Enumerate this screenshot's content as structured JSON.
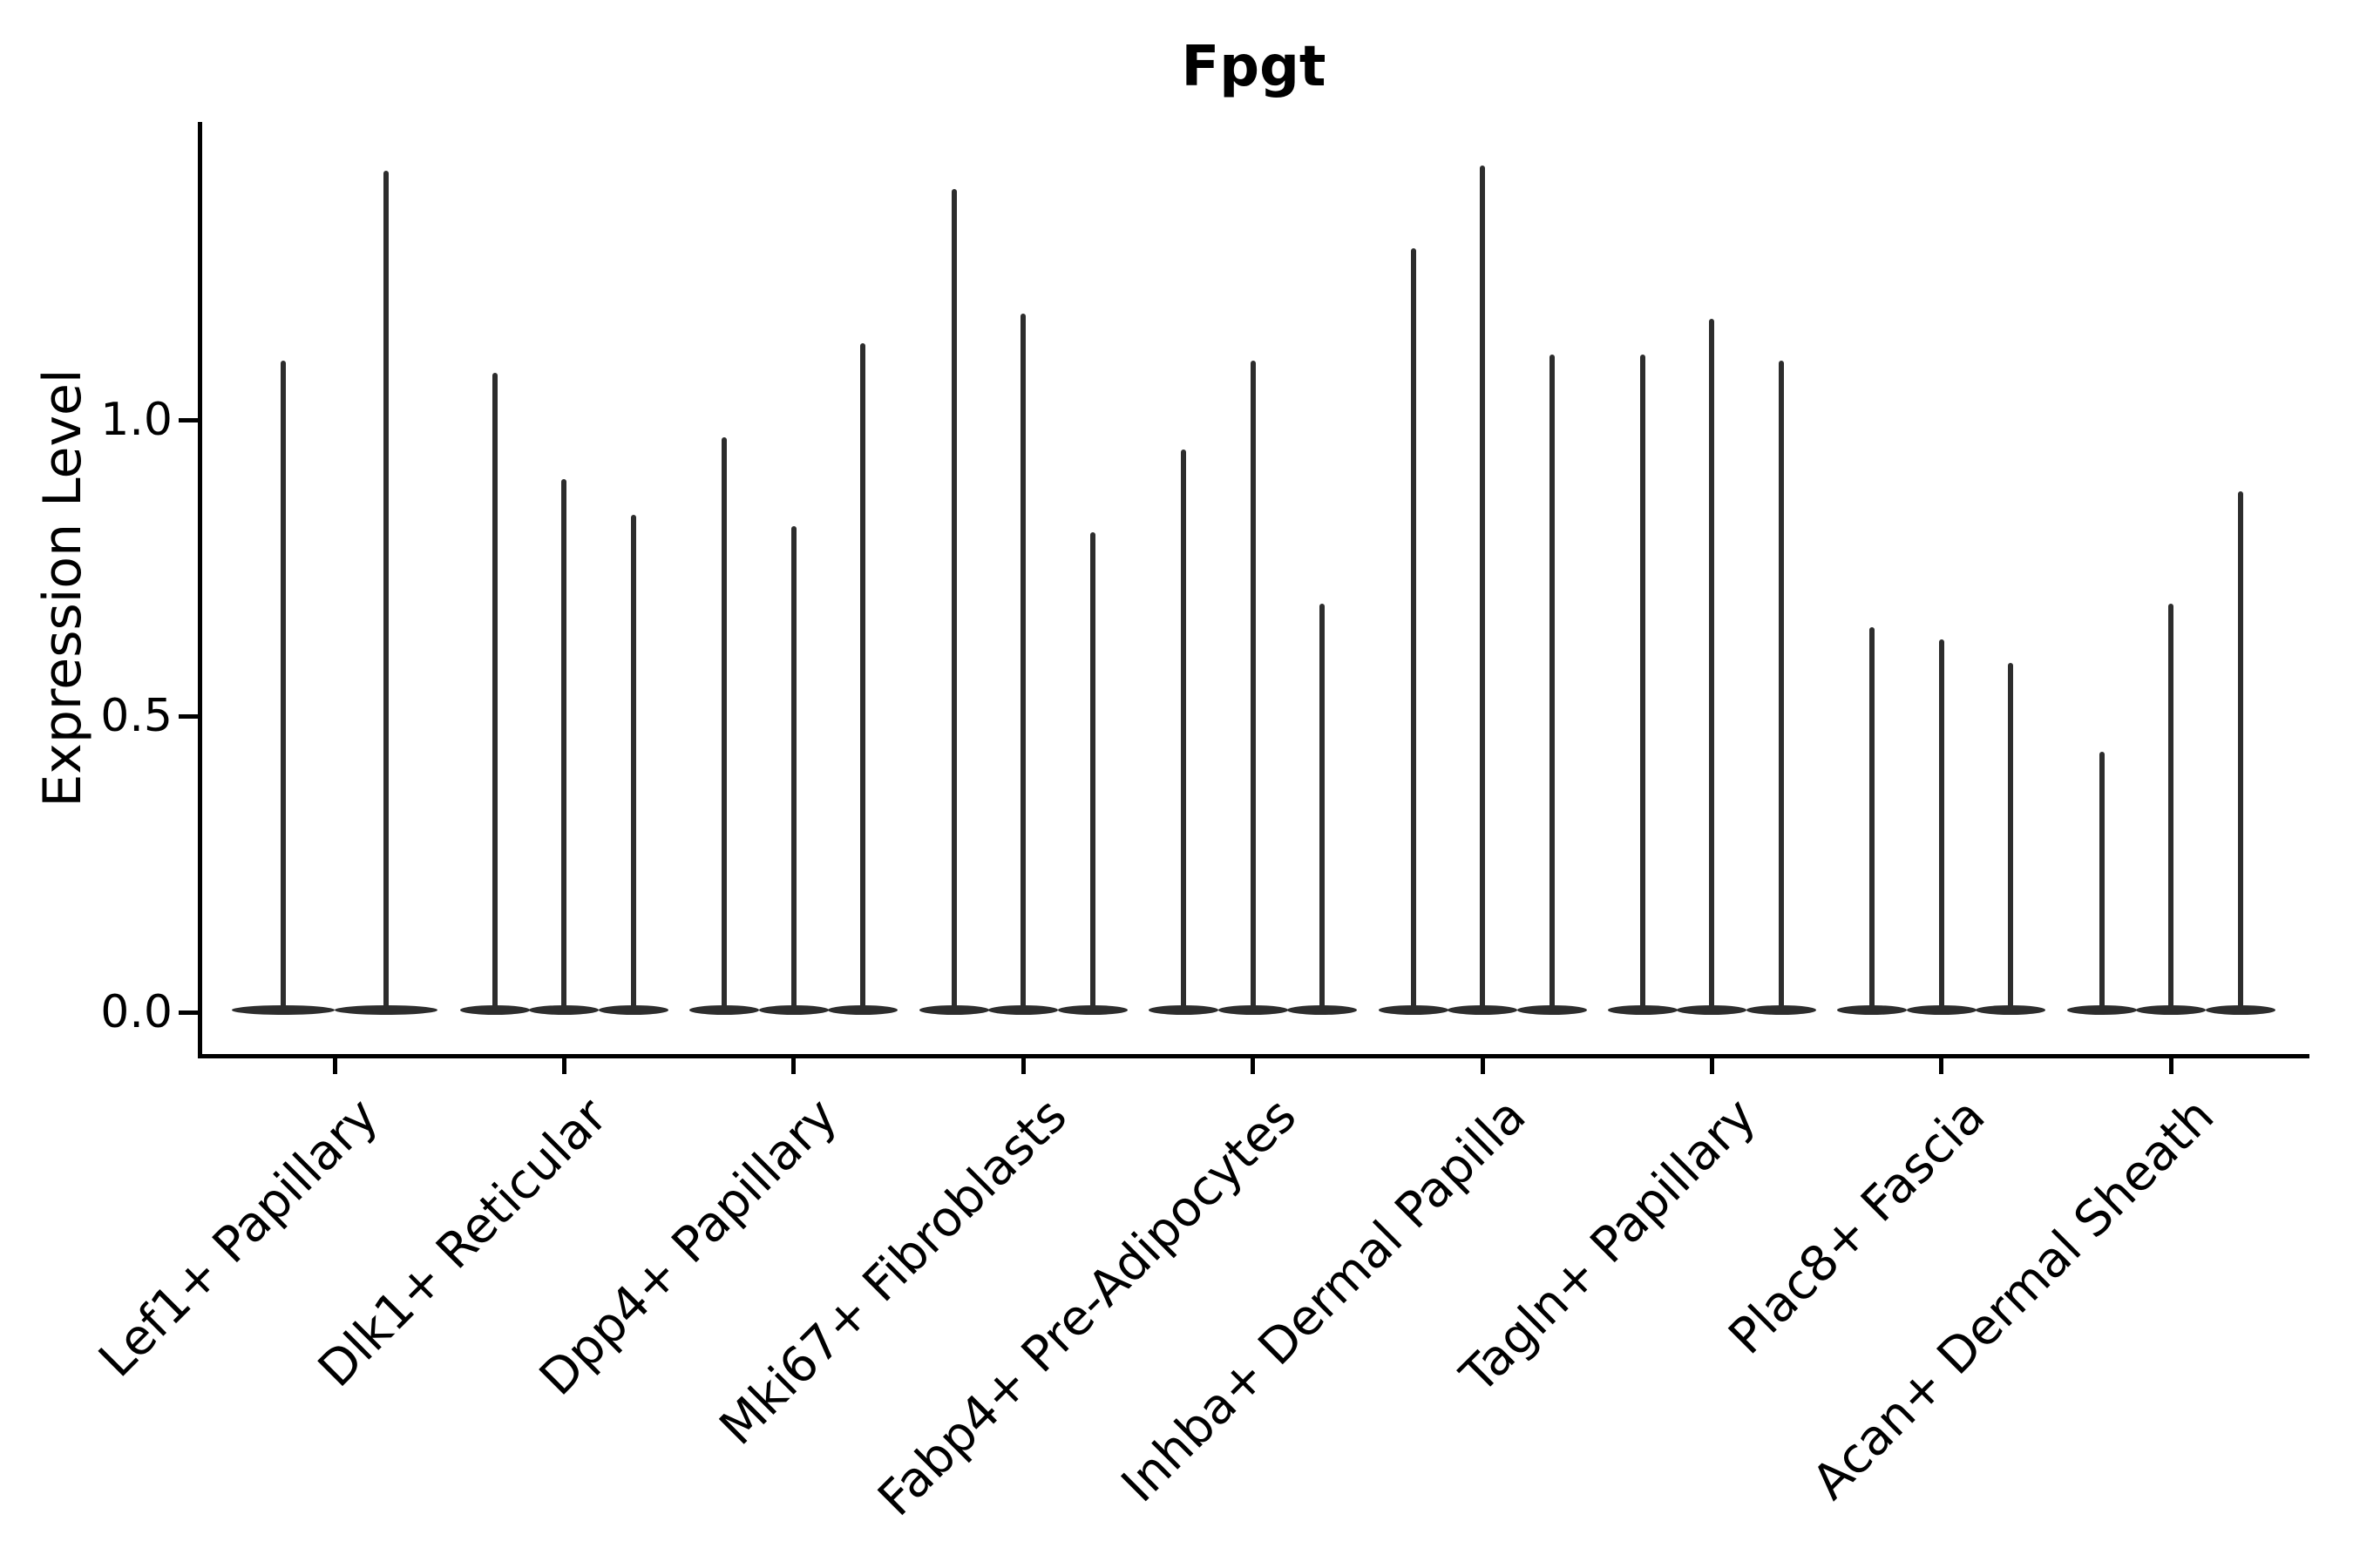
{
  "chart_data": {
    "type": "violin",
    "title": "Fpgt",
    "xlabel": "",
    "ylabel": "Expression Level",
    "legend": "none",
    "grid": false,
    "ylim": [
      -0.07,
      1.5
    ],
    "yticks": [
      {
        "label": "0.0",
        "value": 0.0
      },
      {
        "label": "0.5",
        "value": 0.5
      },
      {
        "label": "1.0",
        "value": 1.0
      }
    ],
    "description": "Stacked narrow violins: nearly all density at expression 0 (flat wide base on the zero line) with a thin vertical spike up to each violin's maximum expression value.",
    "categories": [
      "Lef1+ Papillary",
      "Dlk1+ Reticular",
      "Dpp4+ Papillary",
      "Mki67+ Fibroblasts",
      "Fabp4+ Pre-Adipocytes",
      "Inhba+ Dermal Papilla",
      "Tagln+ Papillary",
      "Plac8+ Fascia",
      "Acan+ Dermal Sheath"
    ],
    "groups": [
      {
        "label": "Lef1+ Papillary",
        "violin_max_values": [
          1.1,
          1.42
        ]
      },
      {
        "label": "Dlk1+ Reticular",
        "violin_max_values": [
          1.08,
          0.9,
          0.84
        ]
      },
      {
        "label": "Dpp4+ Papillary",
        "violin_max_values": [
          0.97,
          0.82,
          1.13
        ]
      },
      {
        "label": "Mki67+ Fibroblasts",
        "violin_max_values": [
          1.39,
          1.18,
          0.81
        ]
      },
      {
        "label": "Fabp4+ Pre-Adipocytes",
        "violin_max_values": [
          0.95,
          1.1,
          0.69
        ]
      },
      {
        "label": "Inhba+ Dermal Papilla",
        "violin_max_values": [
          1.29,
          1.43,
          1.11
        ]
      },
      {
        "label": "Tagln+ Papillary",
        "violin_max_values": [
          1.11,
          1.17,
          1.1
        ]
      },
      {
        "label": "Plac8+ Fascia",
        "violin_max_values": [
          0.65,
          0.63,
          0.59
        ]
      },
      {
        "label": "Acan+ Dermal Sheath",
        "violin_max_values": [
          0.44,
          0.69,
          0.88
        ]
      }
    ],
    "colors": {
      "violin": "#2d2d2d",
      "axis": "#000000",
      "background": "#ffffff"
    }
  }
}
